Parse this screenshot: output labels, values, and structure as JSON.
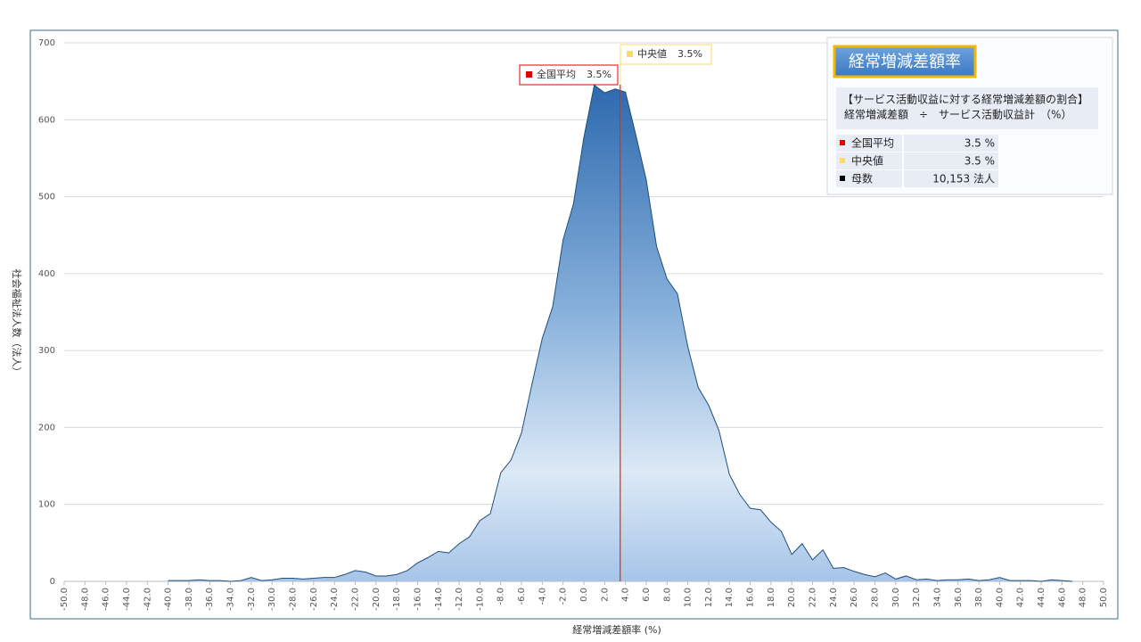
{
  "chart_data": {
    "type": "area",
    "x_label": "経常増減差額率 (%)",
    "y_label": "社会福祉法人数（法人）",
    "x": [
      -50,
      -49,
      -48,
      -47,
      -46,
      -45,
      -44,
      -43,
      -42,
      -41,
      -40,
      -39,
      -38,
      -37,
      -36,
      -35,
      -34,
      -33,
      -32,
      -31,
      -30,
      -29,
      -28,
      -27,
      -26,
      -25,
      -24,
      -23,
      -22,
      -21,
      -20,
      -19,
      -18,
      -17,
      -16,
      -15,
      -14,
      -13,
      -12,
      -11,
      -10,
      -9,
      -8,
      -7,
      -6,
      -5,
      -4,
      -3,
      -2,
      -1,
      0,
      1,
      2,
      3,
      4,
      5,
      6,
      7,
      8,
      9,
      10,
      11,
      12,
      13,
      14,
      15,
      16,
      17,
      18,
      19,
      20,
      21,
      22,
      23,
      24,
      25,
      26,
      27,
      28,
      29,
      30,
      31,
      32,
      33,
      34,
      35,
      36,
      37,
      38,
      39,
      40,
      41,
      42,
      43,
      44,
      45,
      46,
      47,
      48,
      49,
      50
    ],
    "values": [
      null,
      null,
      null,
      null,
      null,
      null,
      null,
      null,
      null,
      null,
      1,
      1,
      1,
      2,
      1,
      1,
      0,
      1,
      5,
      1,
      2,
      4,
      4,
      3,
      4,
      5,
      5,
      9,
      14,
      12,
      7,
      7,
      9,
      14,
      24,
      31,
      39,
      37,
      49,
      58,
      79,
      88,
      141,
      158,
      193,
      256,
      316,
      357,
      444,
      491,
      577,
      645,
      635,
      640,
      636,
      580,
      522,
      435,
      393,
      374,
      305,
      252,
      229,
      196,
      139,
      113,
      95,
      93,
      77,
      65,
      35,
      49,
      28,
      41,
      17,
      18,
      13,
      9,
      6,
      11,
      3,
      7,
      2,
      3,
      1,
      2,
      2,
      3,
      1,
      2,
      5,
      1,
      1,
      1,
      0,
      2,
      1,
      0,
      null,
      null,
      null
    ],
    "color": "#1f4e79",
    "xlim": [
      -50,
      50
    ],
    "ylim": [
      0,
      700
    ],
    "yticks": [
      0,
      100,
      200,
      300,
      400,
      500,
      600,
      700
    ],
    "grid": true,
    "xticks": [
      {
        "value": -50,
        "label": "-50.0"
      },
      {
        "value": -48,
        "label": "-48.0"
      },
      {
        "value": -46,
        "label": "-46.0"
      },
      {
        "value": -44,
        "label": "-44.0"
      },
      {
        "value": -42,
        "label": "-42.0"
      },
      {
        "value": -40,
        "label": "-40.0"
      },
      {
        "value": -38,
        "label": "-38.0"
      },
      {
        "value": -36,
        "label": "-36.0"
      },
      {
        "value": -34,
        "label": "-34.0"
      },
      {
        "value": -32,
        "label": "-32.0"
      },
      {
        "value": -30,
        "label": "-30.0"
      },
      {
        "value": -28,
        "label": "-28.0"
      },
      {
        "value": -26,
        "label": "-26.0"
      },
      {
        "value": -24,
        "label": "-24.0"
      },
      {
        "value": -22,
        "label": "-22.0"
      },
      {
        "value": -20,
        "label": "-20.0"
      },
      {
        "value": -18,
        "label": "-18.0"
      },
      {
        "value": -16,
        "label": "-16.0"
      },
      {
        "value": -14,
        "label": "-14.0"
      },
      {
        "value": -12,
        "label": "-12.0"
      },
      {
        "value": -10,
        "label": "-10.0"
      },
      {
        "value": -8,
        "label": "-8.0"
      },
      {
        "value": -6,
        "label": "-6.0"
      },
      {
        "value": -4,
        "label": "-4.0"
      },
      {
        "value": -2,
        "label": "-2.0"
      },
      {
        "value": 0,
        "label": "0.0"
      },
      {
        "value": 2,
        "label": "2.0"
      },
      {
        "value": 4,
        "label": "4.0"
      },
      {
        "value": 6,
        "label": "6.0"
      },
      {
        "value": 8,
        "label": "8.0"
      },
      {
        "value": 10,
        "label": "10.0"
      },
      {
        "value": 12,
        "label": "12.0"
      },
      {
        "value": 14,
        "label": "14.0"
      },
      {
        "value": 16,
        "label": "16.0"
      },
      {
        "value": 18,
        "label": "18.0"
      },
      {
        "value": 20,
        "label": "20.0"
      },
      {
        "value": 22,
        "label": "22.0"
      },
      {
        "value": 24,
        "label": "24.0"
      },
      {
        "value": 26,
        "label": "26.0"
      },
      {
        "value": 28,
        "label": "28.0"
      },
      {
        "value": 30,
        "label": "30.0"
      },
      {
        "value": 32,
        "label": "32.0"
      },
      {
        "value": 34,
        "label": "34.0"
      },
      {
        "value": 36,
        "label": "36.0"
      },
      {
        "value": 38,
        "label": "38.0"
      },
      {
        "value": 40,
        "label": "40.0"
      },
      {
        "value": 42,
        "label": "42.0"
      },
      {
        "value": 44,
        "label": "44.0"
      },
      {
        "value": 46,
        "label": "46.0"
      },
      {
        "value": 48,
        "label": "48.0"
      },
      {
        "value": 50,
        "label": "50.0"
      }
    ],
    "mean": {
      "label": "全国平均",
      "value": 3.5,
      "value_label": "3.5%",
      "color": "#e00000"
    },
    "median": {
      "label": "中央値",
      "value": 3.5,
      "value_label": "3.5%",
      "color": "#ffd966"
    }
  },
  "info": {
    "title": "経常増減差額率",
    "description": [
      "【サービス活動収益に対する経常増減差額の割合】",
      "経常増減差額　÷　サービス活動収益計　（%）"
    ],
    "rows": [
      {
        "label": "全国平均",
        "value": "3.5 %",
        "color": "#e00000"
      },
      {
        "label": "中央値",
        "value": "3.5 %",
        "color": "#ffd966"
      },
      {
        "label": "母数",
        "value": "10,153 法人",
        "color": "#000000"
      }
    ]
  }
}
